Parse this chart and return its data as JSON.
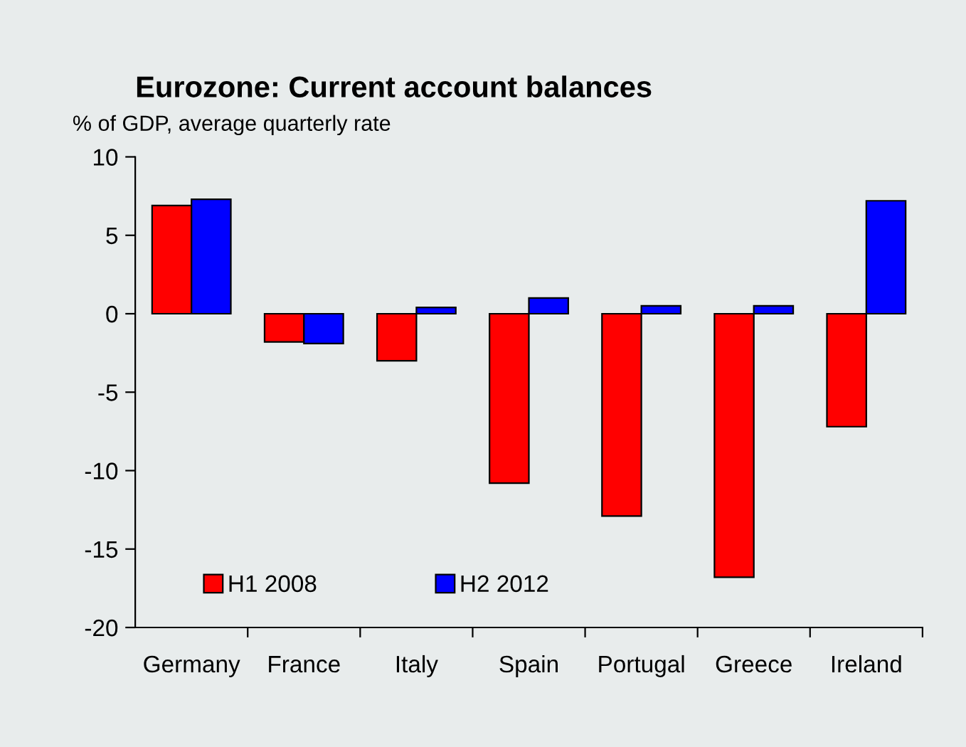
{
  "chart_data": {
    "type": "bar",
    "title": "Eurozone: Current account balances",
    "subtitle": "% of GDP, average quarterly rate",
    "categories": [
      "Germany",
      "France",
      "Italy",
      "Spain",
      "Portugal",
      "Greece",
      "Ireland"
    ],
    "series": [
      {
        "name": "H1 2008",
        "color": "#ff0000",
        "values": [
          6.9,
          -1.8,
          -3.0,
          -10.8,
          -12.9,
          -16.8,
          -7.2
        ]
      },
      {
        "name": "H2 2012",
        "color": "#0000ff",
        "values": [
          7.3,
          -1.9,
          0.4,
          1.0,
          0.5,
          0.5,
          7.2
        ]
      }
    ],
    "ylim": [
      -20,
      10
    ],
    "yticks": [
      -20,
      -15,
      -10,
      -5,
      0,
      5,
      10
    ],
    "grid": false,
    "legend": "bottom left"
  }
}
